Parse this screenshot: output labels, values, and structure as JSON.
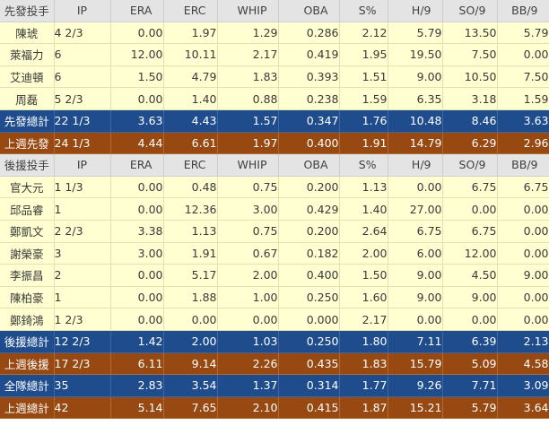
{
  "columns": [
    "IP",
    "ERA",
    "ERC",
    "WHIP",
    "OBA",
    "S%",
    "H/9",
    "SO/9",
    "BB/9"
  ],
  "starters": {
    "header": "先發投手",
    "rows": [
      {
        "name": "陳琥",
        "ip": "4 2/3",
        "era": "0.00",
        "erc": "1.97",
        "whip": "1.29",
        "oba": "0.286",
        "s": "2.12",
        "h9": "5.79",
        "so9": "13.50",
        "bb9": "5.79"
      },
      {
        "name": "萊福力",
        "ip": "6",
        "era": "12.00",
        "erc": "10.11",
        "whip": "2.17",
        "oba": "0.419",
        "s": "1.95",
        "h9": "19.50",
        "so9": "7.50",
        "bb9": "0.00"
      },
      {
        "name": "艾迪頓",
        "ip": "6",
        "era": "1.50",
        "erc": "4.79",
        "whip": "1.83",
        "oba": "0.393",
        "s": "1.51",
        "h9": "9.00",
        "so9": "10.50",
        "bb9": "7.50"
      },
      {
        "name": "周磊",
        "ip": "5 2/3",
        "era": "0.00",
        "erc": "1.40",
        "whip": "0.88",
        "oba": "0.238",
        "s": "1.59",
        "h9": "6.35",
        "so9": "3.18",
        "bb9": "1.59"
      }
    ],
    "total": {
      "name": "先發總計",
      "ip": "22 1/3",
      "era": "3.63",
      "erc": "4.43",
      "whip": "1.57",
      "oba": "0.347",
      "s": "1.76",
      "h9": "10.48",
      "so9": "8.46",
      "bb9": "3.63"
    },
    "prev": {
      "name": "上週先發",
      "ip": "24 1/3",
      "era": "4.44",
      "erc": "6.61",
      "whip": "1.97",
      "oba": "0.400",
      "s": "1.91",
      "h9": "14.79",
      "so9": "6.29",
      "bb9": "2.96"
    }
  },
  "relievers": {
    "header": "後援投手",
    "rows": [
      {
        "name": "官大元",
        "ip": "1 1/3",
        "era": "0.00",
        "erc": "0.48",
        "whip": "0.75",
        "oba": "0.200",
        "s": "1.13",
        "h9": "0.00",
        "so9": "6.75",
        "bb9": "6.75"
      },
      {
        "name": "邱品睿",
        "ip": "1",
        "era": "0.00",
        "erc": "12.36",
        "whip": "3.00",
        "oba": "0.429",
        "s": "1.40",
        "h9": "27.00",
        "so9": "0.00",
        "bb9": "0.00"
      },
      {
        "name": "鄭凱文",
        "ip": "2 2/3",
        "era": "3.38",
        "erc": "1.13",
        "whip": "0.75",
        "oba": "0.200",
        "s": "2.64",
        "h9": "6.75",
        "so9": "6.75",
        "bb9": "0.00"
      },
      {
        "name": "謝榮豪",
        "ip": "3",
        "era": "3.00",
        "erc": "1.91",
        "whip": "0.67",
        "oba": "0.182",
        "s": "2.00",
        "h9": "6.00",
        "so9": "12.00",
        "bb9": "0.00"
      },
      {
        "name": "李振昌",
        "ip": "2",
        "era": "0.00",
        "erc": "5.17",
        "whip": "2.00",
        "oba": "0.400",
        "s": "1.50",
        "h9": "9.00",
        "so9": "4.50",
        "bb9": "9.00"
      },
      {
        "name": "陳柏豪",
        "ip": "1",
        "era": "0.00",
        "erc": "1.88",
        "whip": "1.00",
        "oba": "0.250",
        "s": "1.60",
        "h9": "9.00",
        "so9": "9.00",
        "bb9": "0.00"
      },
      {
        "name": "鄭錡鴻",
        "ip": "1 2/3",
        "era": "0.00",
        "erc": "0.00",
        "whip": "0.00",
        "oba": "0.000",
        "s": "2.17",
        "h9": "0.00",
        "so9": "0.00",
        "bb9": "0.00"
      }
    ],
    "total": {
      "name": "後援總計",
      "ip": "12 2/3",
      "era": "1.42",
      "erc": "2.00",
      "whip": "1.03",
      "oba": "0.250",
      "s": "1.80",
      "h9": "7.11",
      "so9": "6.39",
      "bb9": "2.13"
    },
    "prev": {
      "name": "上週後援",
      "ip": "17 2/3",
      "era": "6.11",
      "erc": "9.14",
      "whip": "2.26",
      "oba": "0.435",
      "s": "1.83",
      "h9": "15.79",
      "so9": "5.09",
      "bb9": "4.58"
    }
  },
  "team": {
    "total": {
      "name": "全隊總計",
      "ip": "35",
      "era": "2.83",
      "erc": "3.54",
      "whip": "1.37",
      "oba": "0.314",
      "s": "1.77",
      "h9": "9.26",
      "so9": "7.71",
      "bb9": "3.09"
    },
    "prev": {
      "name": "上週總計",
      "ip": "42",
      "era": "5.14",
      "erc": "7.65",
      "whip": "2.10",
      "oba": "0.415",
      "s": "1.87",
      "h9": "15.21",
      "so9": "5.79",
      "bb9": "3.64"
    }
  }
}
